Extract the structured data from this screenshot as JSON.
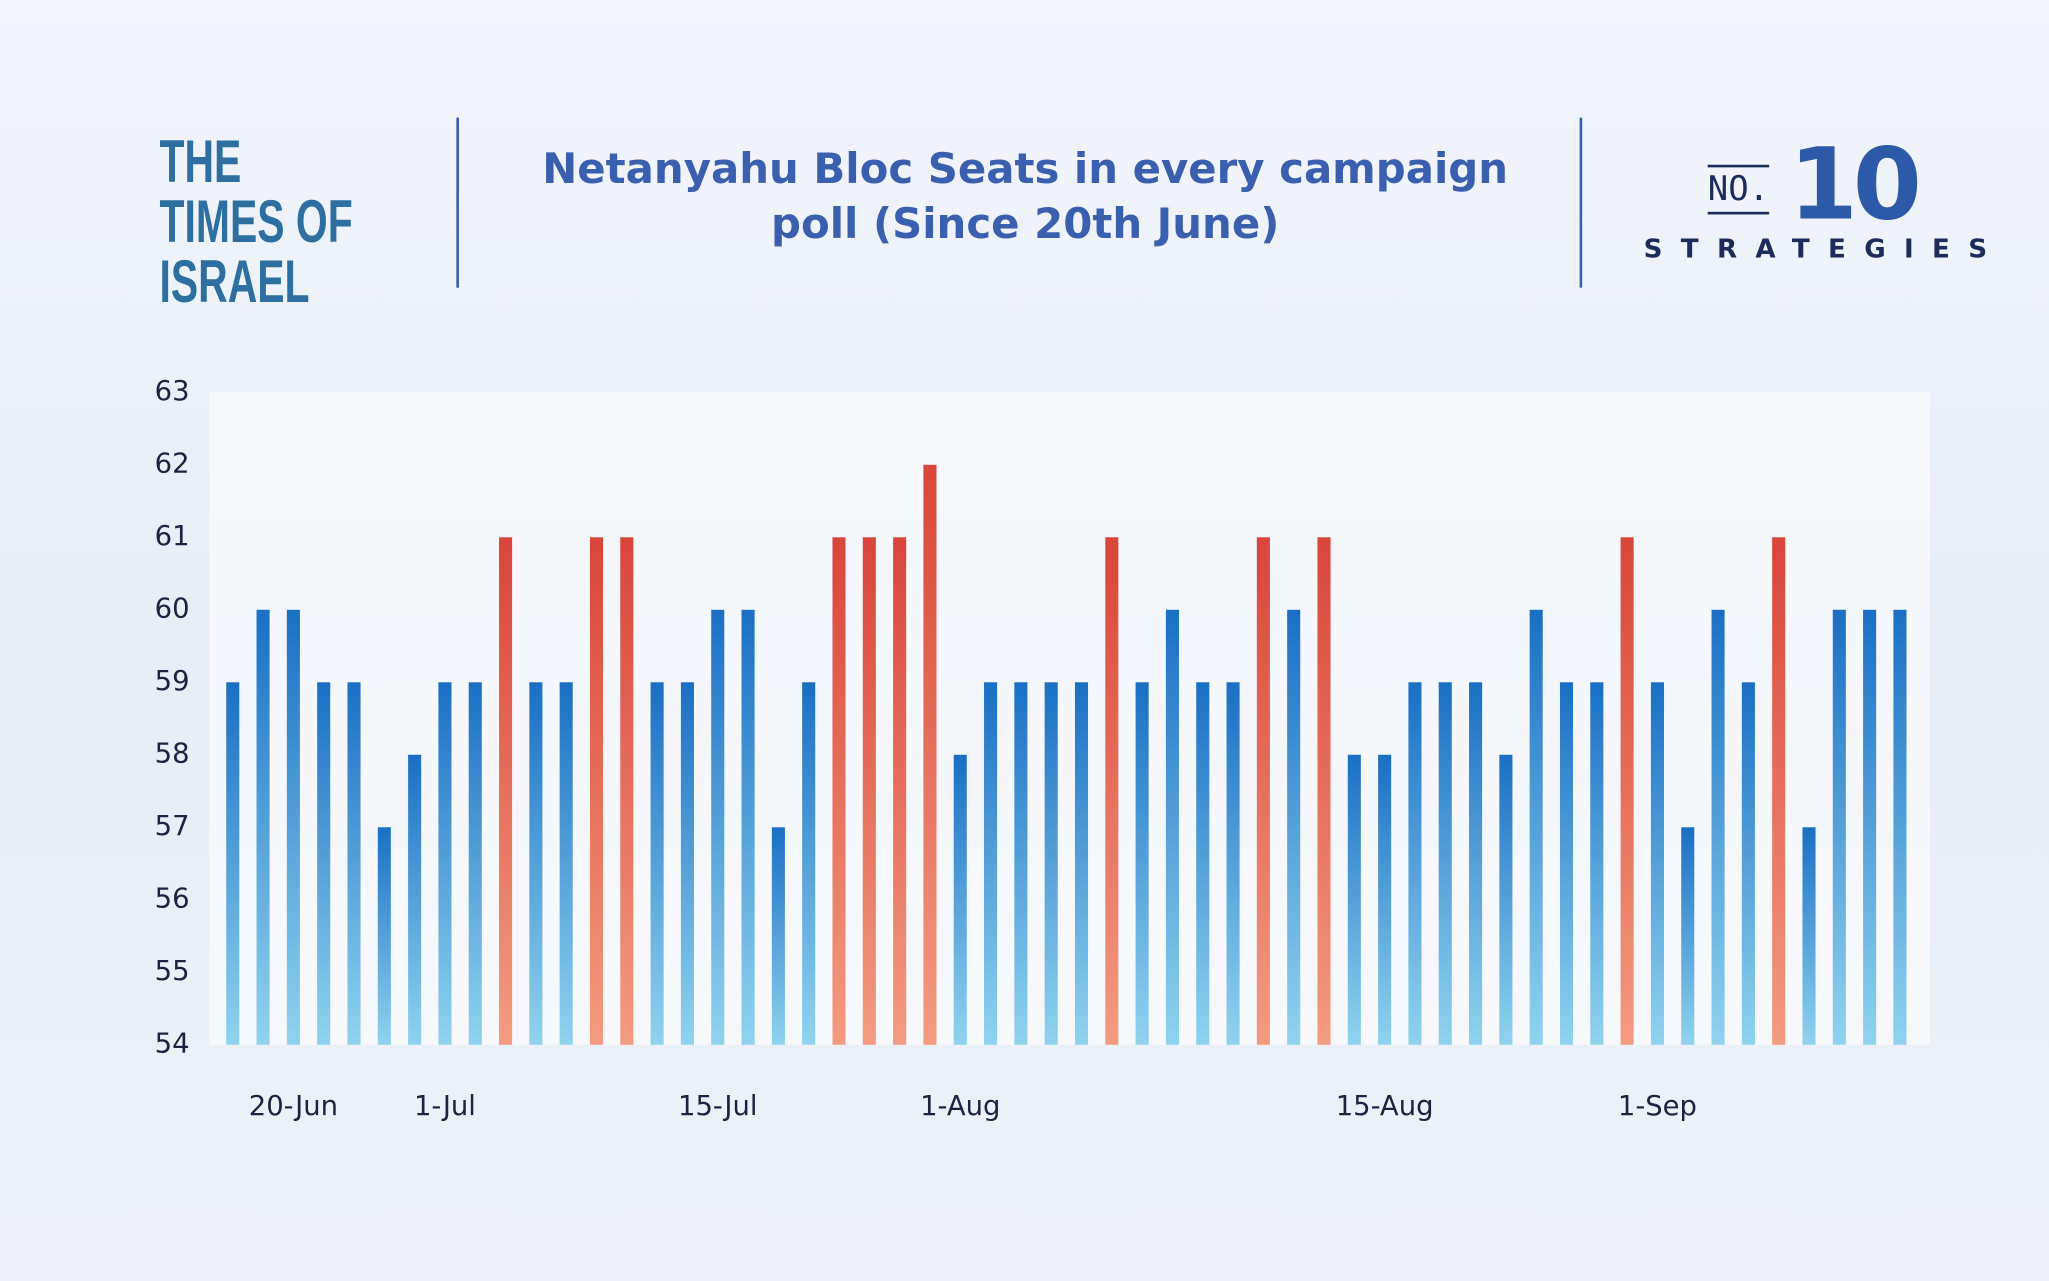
{
  "header": {
    "logo": "THE TIMES OF ISRAEL",
    "brand_prefix": "NO.",
    "brand_number": "10",
    "brand_name": "STRATEGIES"
  },
  "chart_data": {
    "type": "bar",
    "title": "Netanyahu Bloc Seats in every campaign poll (Since 20th June)",
    "categories": [
      null,
      null,
      "20-Jun",
      null,
      null,
      null,
      null,
      "1-Jul",
      null,
      null,
      null,
      null,
      null,
      null,
      null,
      null,
      "15-Jul",
      null,
      null,
      null,
      null,
      null,
      null,
      null,
      "1-Aug",
      null,
      null,
      null,
      null,
      null,
      null,
      null,
      null,
      null,
      null,
      null,
      null,
      null,
      "15-Aug",
      null,
      null,
      null,
      null,
      null,
      null,
      null,
      null,
      "1-Sep",
      null,
      null,
      null,
      null,
      null,
      null,
      null,
      null
    ],
    "values": [
      59,
      60,
      60,
      59,
      59,
      57,
      58,
      59,
      59,
      61,
      59,
      59,
      61,
      61,
      59,
      59,
      60,
      60,
      57,
      59,
      61,
      61,
      61,
      62,
      58,
      59,
      59,
      59,
      59,
      61,
      59,
      60,
      59,
      59,
      61,
      60,
      61,
      58,
      58,
      59,
      59,
      59,
      58,
      60,
      59,
      59,
      61,
      59,
      57,
      60,
      59,
      61,
      57,
      60,
      60,
      60
    ],
    "colors": [
      "#1a6fc4",
      "#1a6fc4",
      "#1a6fc4",
      "#1a6fc4",
      "#1a6fc4",
      "#1a6fc4",
      "#1a6fc4",
      "#1a6fc4",
      "#1a6fc4",
      "#d9453a",
      "#1a6fc4",
      "#1a6fc4",
      "#d9453a",
      "#d9453a",
      "#1a6fc4",
      "#1a6fc4",
      "#1a6fc4",
      "#1a6fc4",
      "#1a6fc4",
      "#1a6fc4",
      "#d9453a",
      "#d9453a",
      "#d9453a",
      "#d9453a",
      "#1a6fc4",
      "#1a6fc4",
      "#1a6fc4",
      "#1a6fc4",
      "#1a6fc4",
      "#d9453a",
      "#1a6fc4",
      "#1a6fc4",
      "#1a6fc4",
      "#1a6fc4",
      "#d9453a",
      "#1a6fc4",
      "#d9453a",
      "#1a6fc4",
      "#1a6fc4",
      "#1a6fc4",
      "#1a6fc4",
      "#1a6fc4",
      "#1a6fc4",
      "#1a6fc4",
      "#1a6fc4",
      "#1a6fc4",
      "#d9453a",
      "#1a6fc4",
      "#1a6fc4",
      "#1a6fc4",
      "#1a6fc4",
      "#d9453a",
      "#1a6fc4",
      "#1a6fc4",
      "#1a6fc4",
      "#1a6fc4"
    ],
    "ylim": [
      54,
      63
    ],
    "yticks": [
      54,
      55,
      56,
      57,
      58,
      59,
      60,
      61,
      62,
      63
    ],
    "grid": false
  }
}
